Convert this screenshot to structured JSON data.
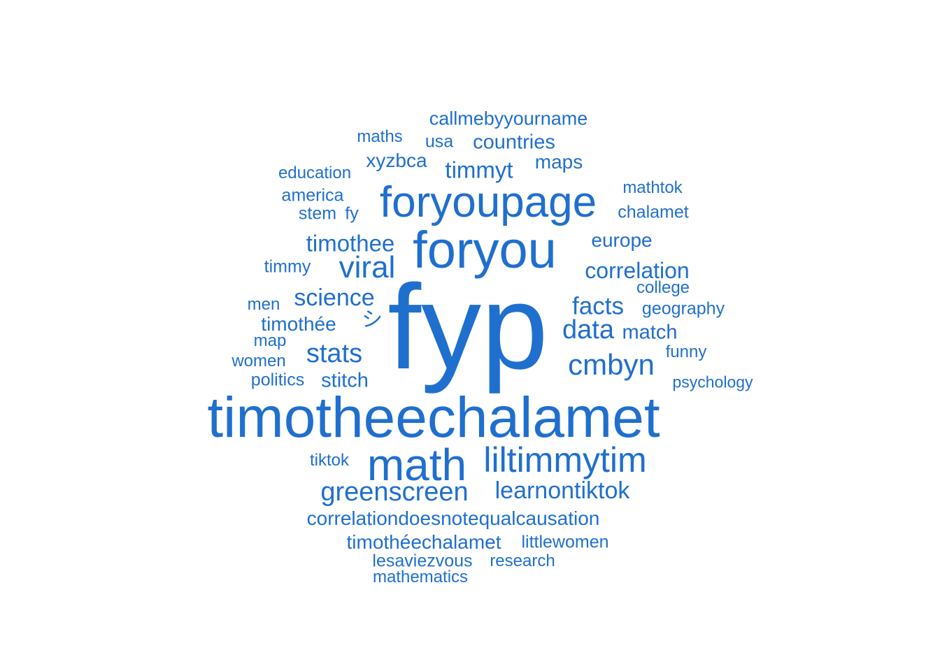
{
  "word_color": "#1f6fcf",
  "words": [
    {
      "text": "fyp"
    },
    {
      "text": "timotheechalamet"
    },
    {
      "text": "foryou"
    },
    {
      "text": "foryoupage"
    },
    {
      "text": "math"
    },
    {
      "text": "liltimmytim"
    },
    {
      "text": "viral"
    },
    {
      "text": "cmbyn"
    },
    {
      "text": "greenscreen"
    },
    {
      "text": "learnontiktok"
    },
    {
      "text": "stats"
    },
    {
      "text": "timothee"
    },
    {
      "text": "data"
    },
    {
      "text": "facts"
    },
    {
      "text": "correlation"
    },
    {
      "text": "science"
    },
    {
      "text": "timmyt"
    },
    {
      "text": "countries"
    },
    {
      "text": "correlationdoesnotequalcausation"
    },
    {
      "text": "stitch"
    },
    {
      "text": "timothée"
    },
    {
      "text": "timothéechalamet"
    },
    {
      "text": "match"
    },
    {
      "text": "europe"
    },
    {
      "text": "callmebyyourname"
    },
    {
      "text": "xyzbca"
    },
    {
      "text": "maps"
    },
    {
      "text": "シ"
    },
    {
      "text": "littlewomen"
    },
    {
      "text": "lesaviezvous"
    },
    {
      "text": "chalamet"
    },
    {
      "text": "geography"
    },
    {
      "text": "america"
    },
    {
      "text": "usa"
    },
    {
      "text": "maths"
    },
    {
      "text": "education"
    },
    {
      "text": "mathtok"
    },
    {
      "text": "stem"
    },
    {
      "text": "fy"
    },
    {
      "text": "timmy"
    },
    {
      "text": "college"
    },
    {
      "text": "men"
    },
    {
      "text": "map"
    },
    {
      "text": "women"
    },
    {
      "text": "politics"
    },
    {
      "text": "funny"
    },
    {
      "text": "psychology"
    },
    {
      "text": "tiktok"
    },
    {
      "text": "research"
    },
    {
      "text": "mathematics"
    }
  ]
}
